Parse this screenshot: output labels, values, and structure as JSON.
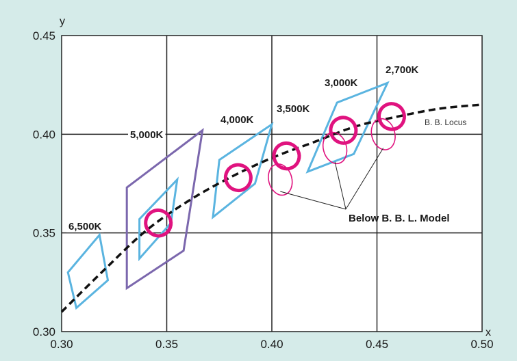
{
  "chart_data": {
    "type": "scatter",
    "xlabel": "x",
    "ylabel": "y",
    "xlim": [
      0.3,
      0.5
    ],
    "ylim": [
      0.3,
      0.45
    ],
    "x_ticks": [
      "0.30",
      "0.35",
      "0.40",
      "0.45",
      "0.50"
    ],
    "y_ticks": [
      "0.30",
      "0.35",
      "0.40",
      "0.45"
    ],
    "grid": true,
    "colors": {
      "quadrangle": "#5ab4e0",
      "five_k_quadrangle": "#7b67ad",
      "ellipse": "#e0137f",
      "locus": "#111111",
      "background": "#d5ebe9",
      "plot_background": "#ffffff"
    },
    "locus": {
      "label": "B. B. Locus",
      "points": [
        [
          0.3,
          0.31
        ],
        [
          0.32,
          0.331
        ],
        [
          0.34,
          0.351
        ],
        [
          0.36,
          0.366
        ],
        [
          0.38,
          0.378
        ],
        [
          0.4,
          0.388
        ],
        [
          0.42,
          0.396
        ],
        [
          0.44,
          0.404
        ],
        [
          0.46,
          0.409
        ],
        [
          0.48,
          0.413
        ],
        [
          0.5,
          0.415
        ]
      ]
    },
    "quadrangles": [
      {
        "label": "6,500K",
        "style": "blue",
        "points": [
          [
            0.303,
            0.33
          ],
          [
            0.307,
            0.312
          ],
          [
            0.322,
            0.326
          ],
          [
            0.318,
            0.349
          ]
        ]
      },
      {
        "label": "5,000K",
        "style": "purple",
        "points": [
          [
            0.331,
            0.373
          ],
          [
            0.331,
            0.322
          ],
          [
            0.358,
            0.341
          ],
          [
            0.367,
            0.402
          ]
        ]
      },
      {
        "label": "",
        "style": "blue",
        "points": [
          [
            0.337,
            0.357
          ],
          [
            0.337,
            0.337
          ],
          [
            0.352,
            0.355
          ],
          [
            0.355,
            0.377
          ]
        ]
      },
      {
        "label": "4,000K",
        "style": "blue",
        "points": [
          [
            0.375,
            0.387
          ],
          [
            0.372,
            0.358
          ],
          [
            0.392,
            0.375
          ],
          [
            0.4,
            0.405
          ]
        ]
      },
      {
        "label": "3,500K",
        "style": "",
        "points": []
      },
      {
        "label": "3,000K",
        "style": "blue",
        "points": [
          [
            0.431,
            0.416
          ],
          [
            0.417,
            0.381
          ],
          [
            0.439,
            0.39
          ],
          [
            0.455,
            0.426
          ]
        ]
      },
      {
        "label": "2,700K",
        "style": "",
        "points": []
      }
    ],
    "ellipses": [
      {
        "cx": 0.346,
        "cy": 0.355,
        "rx": 0.006,
        "ry": 0.0065,
        "style": "main"
      },
      {
        "cx": 0.384,
        "cy": 0.378,
        "rx": 0.006,
        "ry": 0.0065,
        "style": "main"
      },
      {
        "cx": 0.407,
        "cy": 0.389,
        "rx": 0.006,
        "ry": 0.0065,
        "style": "main"
      },
      {
        "cx": 0.434,
        "cy": 0.402,
        "rx": 0.006,
        "ry": 0.0065,
        "style": "main"
      },
      {
        "cx": 0.457,
        "cy": 0.409,
        "rx": 0.006,
        "ry": 0.0065,
        "style": "main"
      },
      {
        "cx": 0.404,
        "cy": 0.377,
        "rx": 0.0055,
        "ry": 0.008,
        "style": "below"
      },
      {
        "cx": 0.43,
        "cy": 0.393,
        "rx": 0.0055,
        "ry": 0.008,
        "style": "below"
      },
      {
        "cx": 0.453,
        "cy": 0.4,
        "rx": 0.0055,
        "ry": 0.008,
        "style": "below"
      }
    ],
    "annotation": {
      "text": "Below B. B. L. Model",
      "targets": [
        [
          0.404,
          0.371
        ],
        [
          0.43,
          0.386
        ],
        [
          0.453,
          0.393
        ]
      ]
    }
  }
}
